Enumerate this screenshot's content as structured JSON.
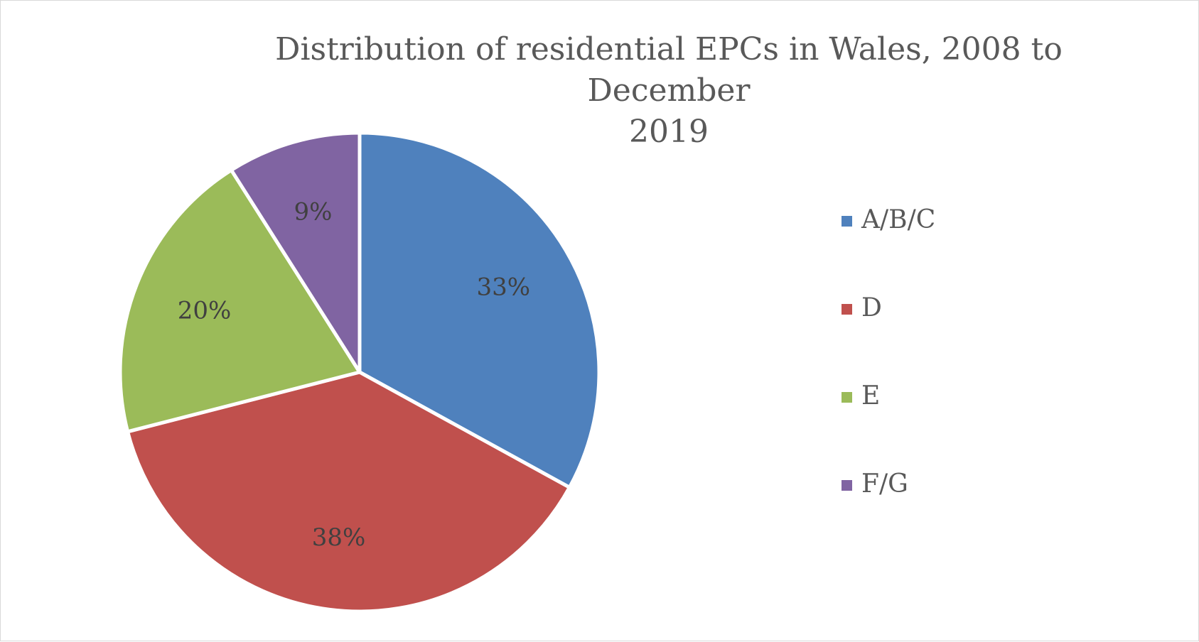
{
  "chart_data": {
    "type": "pie",
    "title_lines": [
      "Distribution of residential EPCs in Wales, 2008 to December",
      "2019"
    ],
    "categories": [
      "A/B/C",
      "D",
      "E",
      "F/G"
    ],
    "values": [
      33,
      38,
      20,
      9
    ],
    "data_labels": [
      "33%",
      "38%",
      "20%",
      "9%"
    ],
    "colors": [
      "#4f81bd",
      "#c0504d",
      "#9bbb59",
      "#8064a2"
    ],
    "legend": {
      "placement": "right",
      "entries": [
        "A/B/C",
        "D",
        "E",
        "F/G"
      ]
    },
    "start_angle": "12 o'clock",
    "direction": "clockwise"
  }
}
